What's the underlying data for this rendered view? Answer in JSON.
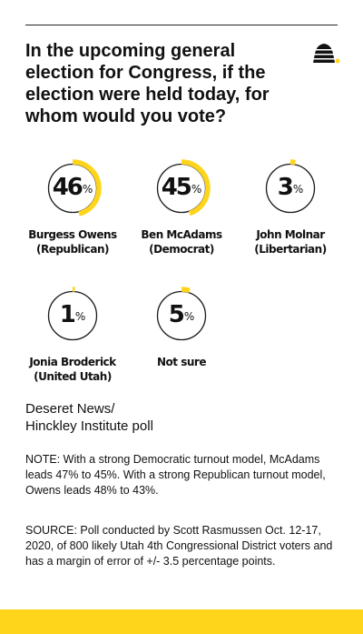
{
  "question": "In the upcoming general election for Congress, if the election were held today, for whom would you vote?",
  "colors": {
    "accent": "#FFD51C",
    "ring": "#1a1a1a",
    "text": "#111111"
  },
  "logo": {
    "icon": "beehive-icon"
  },
  "chart_data": {
    "type": "donut-gauges",
    "unit": "%",
    "results": [
      {
        "name": "Burgess Owens",
        "party": "(Republican)",
        "value": 46
      },
      {
        "name": "Ben McAdams",
        "party": "(Democrat)",
        "value": 45
      },
      {
        "name": "John Molnar",
        "party": "(Libertarian)",
        "value": 3
      },
      {
        "name": "Jonia Broderick",
        "party": "(United Utah)",
        "value": 1
      },
      {
        "name": "Not sure",
        "party": "",
        "value": 5
      }
    ]
  },
  "source_title_line1": "Deseret News/",
  "source_title_line2": "Hinckley Institute poll",
  "note": "NOTE: With a strong Democratic turnout model, McAdams leads 47% to 45%. With a strong Republican turnout model, Owens leads 48% to 43%.",
  "source": "SOURCE: Poll conducted by Scott Rasmussen Oct. 12-17, 2020, of 800 likely Utah 4th Congressional District voters and has a margin of error of +/- 3.5 percentage points."
}
